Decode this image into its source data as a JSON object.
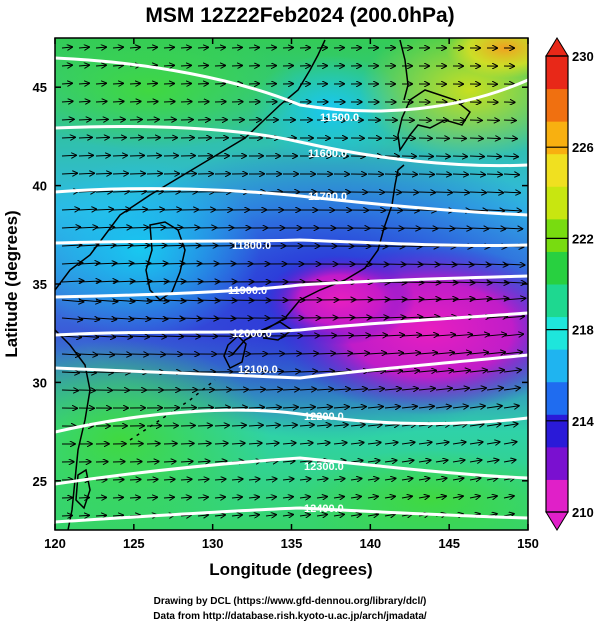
{
  "title": "MSM 12Z22Feb2024 (200.0hPa)",
  "map": {
    "xlabel": "Longitude (degrees)",
    "ylabel": "Latitude  (degrees)",
    "xlim": [
      120,
      150
    ],
    "ylim": [
      22.5,
      47.5
    ],
    "x_ticks": [
      "120",
      "125",
      "130",
      "135",
      "140",
      "145",
      "150"
    ],
    "y_ticks": [
      "25",
      "30",
      "35",
      "40",
      "45"
    ],
    "contour_labels": [
      "11500.0",
      "11600.0",
      "11700.0",
      "11800.0",
      "11900.0",
      "12000.0",
      "12100.0",
      "12200.0",
      "12300.0",
      "12400.0"
    ]
  },
  "colorbar": {
    "min": 210,
    "max": 230,
    "ticks": [
      "210",
      "214",
      "218",
      "222",
      "226",
      "230"
    ],
    "colors": [
      "#e020c8",
      "#7a10d0",
      "#2a1ad8",
      "#1f6cf0",
      "#1fb4f0",
      "#1ee6dc",
      "#1ed890",
      "#28d040",
      "#78dc10",
      "#c8e610",
      "#f0e020",
      "#f8b010",
      "#f07010",
      "#e82818"
    ]
  },
  "credits": {
    "line1": "Drawing by DCL (https://www.gfd-dennou.org/library/dcl/)",
    "line2": "Data from http://database.rish.kyoto-u.ac.jp/arch/jmadata/"
  }
}
